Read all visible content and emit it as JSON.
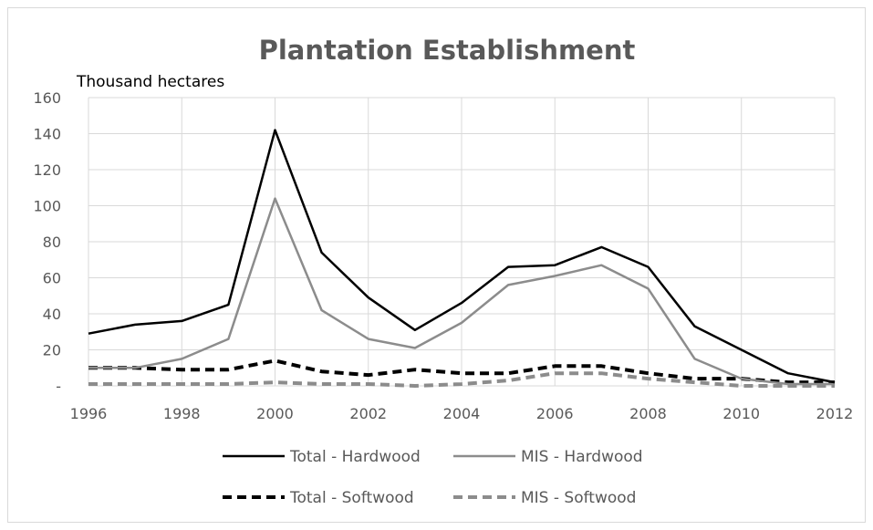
{
  "chart_data": {
    "type": "line",
    "title": "Plantation Establishment",
    "unit_label": "Thousand hectares",
    "xlabel": "",
    "ylabel": "Thousand hectares",
    "x": [
      1996,
      1997,
      1998,
      1999,
      2000,
      2001,
      2002,
      2003,
      2004,
      2005,
      2006,
      2007,
      2008,
      2009,
      2010,
      2011,
      2012
    ],
    "x_ticks": [
      "1996",
      "1998",
      "2000",
      "2002",
      "2004",
      "2006",
      "2008",
      "2010",
      "2012"
    ],
    "y_ticks": [
      "-",
      "20",
      "40",
      "60",
      "80",
      "100",
      "120",
      "140",
      "160"
    ],
    "xlim": [
      1996,
      2012
    ],
    "ylim": [
      0,
      160
    ],
    "grid": true,
    "legend_position": "bottom",
    "series": [
      {
        "name": "Total - Hardwood",
        "color": "#000000",
        "dash": "solid",
        "values": [
          29,
          34,
          36,
          45,
          142,
          74,
          49,
          31,
          46,
          66,
          67,
          77,
          66,
          33,
          20,
          7,
          2
        ]
      },
      {
        "name": "MIS - Hardwood",
        "color": "#8c8c8c",
        "dash": "solid",
        "values": [
          10,
          10,
          15,
          26,
          104,
          42,
          26,
          21,
          35,
          56,
          61,
          67,
          54,
          15,
          4,
          1,
          1
        ]
      },
      {
        "name": "Total - Softwood",
        "color": "#000000",
        "dash": "dashed",
        "values": [
          10,
          10,
          9,
          9,
          14,
          8,
          6,
          9,
          7,
          7,
          11,
          11,
          7,
          4,
          4,
          2,
          2
        ]
      },
      {
        "name": "MIS - Softwood",
        "color": "#8c8c8c",
        "dash": "dashed",
        "values": [
          1,
          1,
          1,
          1,
          2,
          1,
          1,
          0,
          1,
          3,
          7,
          7,
          4,
          2,
          0,
          0,
          0
        ]
      }
    ]
  }
}
